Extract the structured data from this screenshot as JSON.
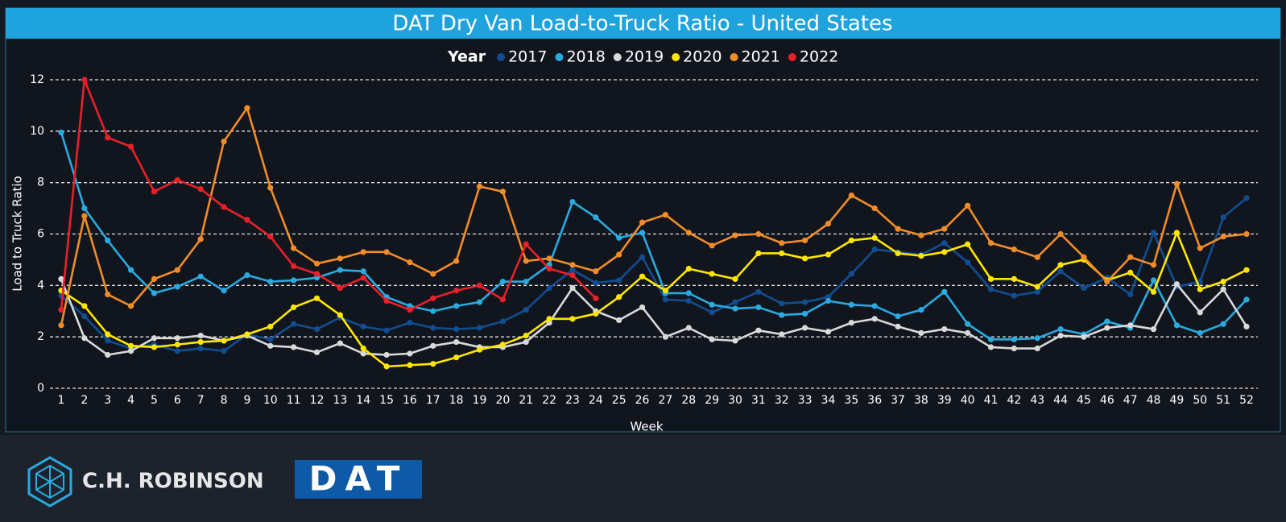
{
  "chart_data": {
    "type": "line",
    "title": "DAT Dry Van Load-to-Truck Ratio - United States",
    "legend_title": "Year",
    "legend_position": "top",
    "x_label": "Week",
    "y_label": "Load to Truck Ratio",
    "categories": [
      1,
      2,
      3,
      4,
      5,
      6,
      7,
      8,
      9,
      10,
      11,
      12,
      13,
      14,
      15,
      16,
      17,
      18,
      19,
      20,
      21,
      22,
      23,
      24,
      25,
      26,
      27,
      28,
      29,
      30,
      31,
      32,
      33,
      34,
      35,
      36,
      37,
      38,
      39,
      40,
      41,
      42,
      43,
      44,
      45,
      46,
      47,
      48,
      49,
      50,
      51,
      52
    ],
    "ylim": [
      0,
      12
    ],
    "yticks": [
      0,
      2,
      4,
      6,
      8,
      10,
      12
    ],
    "grid": true,
    "series": [
      {
        "name": "2017",
        "color": "#124d91",
        "values": [
          3.6,
          2.8,
          1.85,
          1.55,
          1.7,
          1.45,
          1.55,
          1.45,
          2.1,
          1.9,
          2.5,
          2.3,
          2.75,
          2.4,
          2.25,
          2.55,
          2.35,
          2.3,
          2.35,
          2.6,
          3.05,
          3.9,
          4.6,
          4.1,
          4.2,
          5.1,
          3.45,
          3.4,
          2.95,
          3.35,
          3.75,
          3.3,
          3.35,
          3.55,
          4.45,
          5.4,
          5.3,
          5.2,
          5.65,
          4.9,
          3.85,
          3.6,
          3.75,
          4.55,
          3.9,
          4.3,
          3.65,
          6.05,
          3.95,
          4.15,
          6.65,
          7.4
        ]
      },
      {
        "name": "2018",
        "color": "#29aae1",
        "values": [
          9.95,
          7.0,
          5.75,
          4.6,
          3.7,
          3.95,
          4.35,
          3.8,
          4.4,
          4.15,
          4.2,
          4.3,
          4.6,
          4.55,
          3.55,
          3.2,
          3.0,
          3.2,
          3.35,
          4.15,
          4.15,
          4.8,
          7.25,
          6.65,
          5.85,
          6.05,
          3.7,
          3.7,
          3.25,
          3.1,
          3.15,
          2.85,
          2.9,
          3.4,
          3.25,
          3.2,
          2.8,
          3.05,
          3.75,
          2.5,
          1.9,
          1.9,
          1.95,
          2.3,
          2.1,
          2.6,
          2.35,
          4.2,
          2.45,
          2.15,
          2.5,
          3.45
        ]
      },
      {
        "name": "2019",
        "color": "#d9d9d9",
        "values": [
          4.25,
          1.95,
          1.3,
          1.45,
          1.95,
          1.95,
          2.05,
          1.85,
          2.05,
          1.65,
          1.6,
          1.4,
          1.75,
          1.35,
          1.3,
          1.35,
          1.65,
          1.8,
          1.6,
          1.6,
          1.8,
          2.55,
          3.9,
          3.0,
          2.65,
          3.15,
          2.0,
          2.35,
          1.9,
          1.85,
          2.25,
          2.1,
          2.35,
          2.2,
          2.55,
          2.7,
          2.4,
          2.15,
          2.3,
          2.15,
          1.6,
          1.55,
          1.55,
          2.05,
          2.0,
          2.35,
          2.45,
          2.3,
          4.05,
          2.95,
          3.85,
          2.4
        ]
      },
      {
        "name": "2020",
        "color": "#ffe600",
        "values": [
          3.8,
          3.2,
          2.1,
          1.65,
          1.6,
          1.7,
          1.8,
          1.85,
          2.1,
          2.4,
          3.15,
          3.5,
          2.85,
          1.55,
          0.85,
          0.9,
          0.95,
          1.2,
          1.5,
          1.7,
          2.05,
          2.7,
          2.7,
          2.9,
          3.55,
          4.35,
          3.8,
          4.65,
          4.45,
          4.25,
          5.25,
          5.25,
          5.05,
          5.2,
          5.75,
          5.85,
          5.25,
          5.15,
          5.3,
          5.6,
          4.25,
          4.25,
          3.95,
          4.8,
          5.0,
          4.2,
          4.5,
          3.75,
          6.05,
          3.85,
          4.15,
          4.6
        ]
      },
      {
        "name": "2021",
        "color": "#f28c28",
        "values": [
          2.45,
          6.7,
          3.65,
          3.2,
          4.25,
          4.6,
          5.8,
          9.6,
          10.9,
          7.8,
          5.45,
          4.85,
          5.05,
          5.3,
          5.3,
          4.9,
          4.45,
          4.95,
          7.85,
          7.65,
          4.95,
          5.05,
          4.8,
          4.55,
          5.2,
          6.45,
          6.75,
          6.05,
          5.55,
          5.95,
          6.0,
          5.65,
          5.75,
          6.4,
          7.5,
          7.0,
          6.2,
          5.95,
          6.2,
          7.1,
          5.65,
          5.4,
          5.1,
          6.0,
          5.1,
          4.15,
          5.1,
          4.8,
          7.95,
          5.45,
          5.9,
          6.0
        ]
      },
      {
        "name": "2022",
        "color": "#e8202a",
        "values": [
          3.05,
          12.0,
          9.75,
          9.4,
          7.65,
          8.1,
          7.75,
          7.05,
          6.55,
          5.9,
          4.75,
          4.45,
          3.9,
          4.3,
          3.4,
          3.05,
          3.5,
          3.8,
          4.0,
          3.45,
          5.6,
          4.65,
          4.4,
          3.5,
          null,
          null,
          null,
          null,
          null,
          null,
          null,
          null,
          null,
          null,
          null,
          null,
          null,
          null,
          null,
          null,
          null,
          null,
          null,
          null,
          null,
          null,
          null,
          null,
          null,
          null,
          null,
          null
        ]
      }
    ]
  },
  "footer": {
    "logos": [
      "C.H. ROBINSON",
      "DAT"
    ]
  }
}
